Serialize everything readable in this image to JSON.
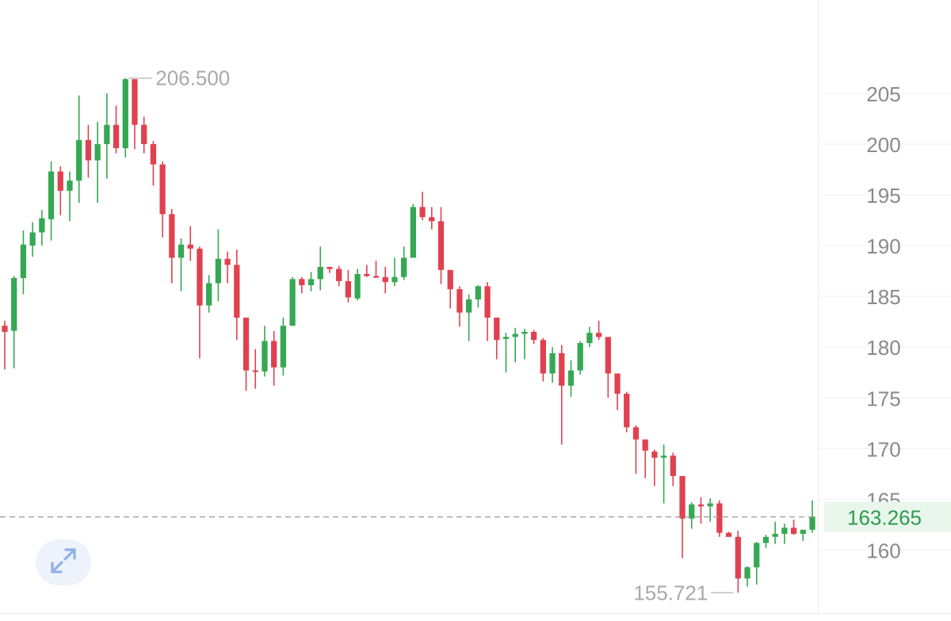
{
  "chart_data": {
    "type": "candlestick",
    "ylim": [
      153.4,
      214.2
    ],
    "y_ticks": [
      "160",
      "165",
      "170",
      "175",
      "180",
      "185",
      "190",
      "195",
      "200",
      "205"
    ],
    "colors": {
      "up": "#35a852",
      "down": "#e0414f",
      "price_line": "#9e9e9e",
      "price_label": "#2e9a4f"
    },
    "high_marker": "206.500",
    "low_marker": "155.721",
    "current_price": "163.265",
    "current_value": 163.265,
    "candles": [
      [
        182.1,
        182.6,
        177.8,
        181.5
      ],
      [
        181.6,
        187.0,
        177.9,
        186.8
      ],
      [
        186.8,
        191.5,
        185.2,
        190.1
      ],
      [
        190.0,
        192.3,
        188.9,
        191.3
      ],
      [
        191.3,
        193.5,
        190.0,
        192.7
      ],
      [
        192.6,
        198.3,
        190.5,
        197.3
      ],
      [
        197.3,
        197.8,
        193.0,
        195.4
      ],
      [
        195.4,
        197.3,
        192.4,
        196.4
      ],
      [
        196.4,
        204.8,
        194.2,
        200.4
      ],
      [
        200.4,
        201.9,
        196.7,
        198.4
      ],
      [
        198.4,
        202.2,
        194.2,
        200.0
      ],
      [
        200.0,
        205.0,
        196.6,
        201.9
      ],
      [
        201.9,
        203.8,
        199.1,
        199.6
      ],
      [
        199.6,
        206.5,
        198.7,
        206.4
      ],
      [
        206.4,
        206.4,
        199.5,
        201.9
      ],
      [
        201.9,
        202.7,
        199.1,
        200.0
      ],
      [
        200.0,
        200.3,
        195.9,
        198.0
      ],
      [
        198.0,
        198.3,
        190.8,
        193.1
      ],
      [
        193.1,
        193.6,
        186.3,
        188.8
      ],
      [
        188.8,
        190.7,
        185.5,
        190.1
      ],
      [
        190.1,
        191.9,
        188.5,
        189.7
      ],
      [
        189.7,
        189.9,
        178.9,
        184.1
      ],
      [
        184.1,
        187.1,
        183.4,
        186.3
      ],
      [
        186.3,
        191.6,
        184.5,
        188.7
      ],
      [
        188.7,
        189.4,
        186.3,
        188.1
      ],
      [
        188.1,
        189.6,
        180.7,
        182.9
      ],
      [
        182.9,
        182.9,
        175.7,
        177.7
      ],
      [
        177.7,
        179.8,
        175.9,
        177.6
      ],
      [
        177.6,
        182.1,
        177.1,
        180.6
      ],
      [
        180.6,
        181.6,
        176.2,
        178.0
      ],
      [
        178.0,
        182.9,
        177.2,
        182.1
      ],
      [
        182.1,
        186.9,
        182.1,
        186.7
      ],
      [
        186.7,
        186.9,
        185.3,
        186.1
      ],
      [
        186.1,
        187.4,
        185.5,
        186.7
      ],
      [
        186.7,
        189.9,
        185.6,
        187.9
      ],
      [
        187.9,
        187.9,
        187.3,
        187.7
      ],
      [
        187.7,
        188.0,
        186.0,
        186.5
      ],
      [
        186.5,
        187.6,
        184.4,
        184.9
      ],
      [
        184.8,
        187.7,
        184.6,
        187.2
      ],
      [
        187.2,
        188.1,
        186.9,
        187.0
      ],
      [
        187.0,
        188.5,
        186.8,
        186.9
      ],
      [
        186.9,
        187.9,
        185.3,
        186.4
      ],
      [
        186.4,
        188.8,
        186.0,
        186.9
      ],
      [
        186.9,
        189.9,
        186.6,
        188.8
      ],
      [
        188.8,
        194.1,
        188.8,
        193.8
      ],
      [
        193.8,
        195.3,
        192.5,
        192.8
      ],
      [
        192.8,
        193.8,
        191.6,
        192.4
      ],
      [
        192.4,
        193.8,
        186.2,
        187.6
      ],
      [
        187.6,
        187.6,
        183.8,
        185.7
      ],
      [
        185.7,
        186.0,
        182.0,
        183.4
      ],
      [
        183.4,
        185.2,
        180.6,
        184.7
      ],
      [
        184.7,
        186.1,
        183.9,
        186.0
      ],
      [
        186.0,
        186.4,
        180.6,
        182.9
      ],
      [
        182.9,
        182.8,
        178.8,
        180.7
      ],
      [
        180.8,
        181.4,
        177.5,
        181.0
      ],
      [
        181.0,
        181.9,
        178.5,
        181.3
      ],
      [
        181.3,
        181.8,
        178.8,
        181.5
      ],
      [
        181.5,
        181.7,
        180.3,
        180.7
      ],
      [
        180.7,
        180.9,
        176.6,
        177.4
      ],
      [
        177.4,
        180.0,
        176.5,
        179.4
      ],
      [
        179.4,
        180.2,
        170.4,
        176.2
      ],
      [
        176.2,
        178.7,
        175.1,
        177.7
      ],
      [
        177.7,
        180.6,
        177.3,
        180.4
      ],
      [
        180.4,
        182.0,
        180.0,
        181.4
      ],
      [
        181.4,
        182.6,
        180.7,
        181.0
      ],
      [
        181.0,
        180.9,
        175.0,
        177.4
      ],
      [
        177.4,
        177.3,
        173.8,
        175.4
      ],
      [
        175.4,
        175.6,
        171.6,
        172.1
      ],
      [
        172.1,
        172.3,
        167.5,
        170.9
      ],
      [
        170.9,
        170.6,
        167.1,
        169.8
      ],
      [
        169.7,
        169.9,
        166.3,
        169.1
      ],
      [
        169.1,
        170.4,
        164.6,
        169.3
      ],
      [
        169.3,
        169.6,
        166.3,
        167.3
      ],
      [
        167.3,
        166.9,
        159.2,
        163.1
      ],
      [
        163.1,
        164.7,
        162.1,
        164.5
      ],
      [
        164.5,
        165.2,
        162.6,
        164.3
      ],
      [
        164.3,
        165.1,
        162.8,
        164.6
      ],
      [
        164.6,
        164.9,
        161.3,
        161.7
      ],
      [
        161.7,
        161.8,
        161.3,
        161.3
      ],
      [
        161.3,
        161.9,
        155.8,
        157.2
      ],
      [
        157.2,
        158.4,
        156.4,
        158.3
      ],
      [
        158.3,
        160.8,
        156.6,
        160.7
      ],
      [
        160.7,
        161.5,
        160.2,
        161.3
      ],
      [
        161.3,
        162.8,
        160.6,
        161.6
      ],
      [
        161.6,
        162.6,
        160.6,
        162.2
      ],
      [
        162.2,
        163.0,
        161.5,
        161.6
      ],
      [
        161.6,
        161.9,
        160.9,
        162.0
      ],
      [
        162.0,
        164.9,
        161.7,
        163.3
      ]
    ]
  }
}
